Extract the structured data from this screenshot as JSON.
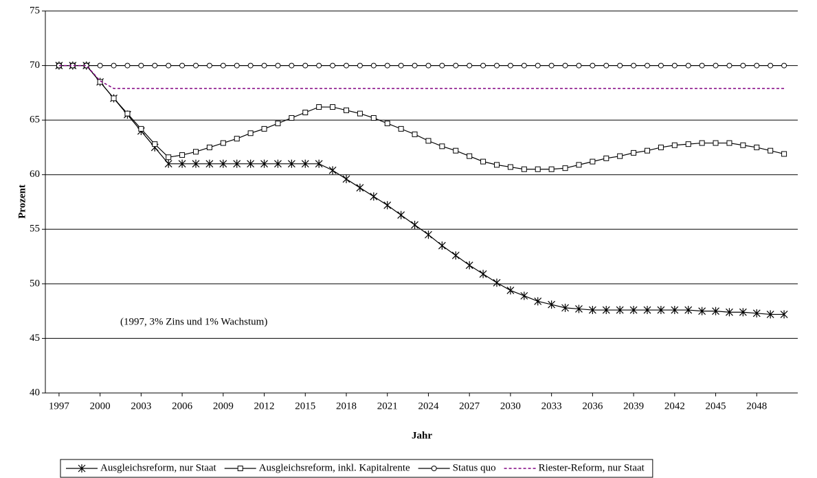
{
  "chart_data": {
    "type": "line",
    "x_label": "Jahr",
    "y_label": "Prozent",
    "annotation": "(1997, 3% Zins und 1% Wachstum)",
    "x": [
      1997,
      1998,
      1999,
      2000,
      2001,
      2002,
      2003,
      2004,
      2005,
      2006,
      2007,
      2008,
      2009,
      2010,
      2011,
      2012,
      2013,
      2014,
      2015,
      2016,
      2017,
      2018,
      2019,
      2020,
      2021,
      2022,
      2023,
      2024,
      2025,
      2026,
      2027,
      2028,
      2029,
      2030,
      2031,
      2032,
      2033,
      2034,
      2035,
      2036,
      2037,
      2038,
      2039,
      2040,
      2041,
      2042,
      2043,
      2044,
      2045,
      2046,
      2047,
      2048,
      2049,
      2050
    ],
    "xlim": [
      1996,
      2051
    ],
    "xticks": [
      1997,
      2000,
      2003,
      2006,
      2009,
      2012,
      2015,
      2018,
      2021,
      2024,
      2027,
      2030,
      2033,
      2036,
      2039,
      2042,
      2045,
      2048
    ],
    "ylim": [
      40,
      75
    ],
    "yticks": [
      40,
      45,
      50,
      55,
      60,
      65,
      70,
      75
    ],
    "grid": true,
    "legend": "bottom",
    "series": [
      {
        "name": "Ausgleichsreform, nur Staat",
        "color": "#000000",
        "marker": "star",
        "dash": "solid",
        "values": [
          70,
          70,
          70,
          68.5,
          67,
          65.5,
          64,
          62.5,
          61,
          61,
          61,
          61,
          61,
          61,
          61,
          61,
          61,
          61,
          61,
          61,
          60.4,
          59.6,
          58.8,
          58,
          57.2,
          56.3,
          55.4,
          54.5,
          53.5,
          52.6,
          51.7,
          50.9,
          50.1,
          49.4,
          48.9,
          48.4,
          48.1,
          47.8,
          47.7,
          47.6,
          47.6,
          47.6,
          47.6,
          47.6,
          47.6,
          47.6,
          47.6,
          47.5,
          47.5,
          47.4,
          47.4,
          47.3,
          47.2,
          47.2
        ]
      },
      {
        "name": "Ausgleichsreform, inkl. Kapitalrente",
        "color": "#000000",
        "marker": "square",
        "dash": "solid",
        "values": [
          70,
          70,
          70,
          68.5,
          67,
          65.6,
          64.2,
          62.8,
          61.6,
          61.8,
          62.1,
          62.5,
          62.9,
          63.3,
          63.8,
          64.2,
          64.7,
          65.2,
          65.7,
          66.2,
          66.2,
          65.9,
          65.6,
          65.2,
          64.7,
          64.2,
          63.7,
          63.1,
          62.6,
          62.2,
          61.7,
          61.2,
          60.9,
          60.7,
          60.5,
          60.5,
          60.5,
          60.6,
          60.9,
          61.2,
          61.5,
          61.7,
          62,
          62.2,
          62.5,
          62.7,
          62.8,
          62.9,
          62.9,
          62.9,
          62.7,
          62.5,
          62.2,
          61.9
        ]
      },
      {
        "name": "Status quo",
        "color": "#000000",
        "marker": "circle",
        "dash": "solid",
        "values": [
          70,
          70,
          70,
          70,
          70,
          70,
          70,
          70,
          70,
          70,
          70,
          70,
          70,
          70,
          70,
          70,
          70,
          70,
          70,
          70,
          70,
          70,
          70,
          70,
          70,
          70,
          70,
          70,
          70,
          70,
          70,
          70,
          70,
          70,
          70,
          70,
          70,
          70,
          70,
          70,
          70,
          70,
          70,
          70,
          70,
          70,
          70,
          70,
          70,
          70,
          70,
          70,
          70,
          70
        ]
      },
      {
        "name": "Riester-Reform, nur Staat",
        "color": "#800080",
        "marker": "none",
        "dash": "dashed",
        "values": [
          70,
          70,
          70,
          68.6,
          67.9,
          67.9,
          67.9,
          67.9,
          67.9,
          67.9,
          67.9,
          67.9,
          67.9,
          67.9,
          67.9,
          67.9,
          67.9,
          67.9,
          67.9,
          67.9,
          67.9,
          67.9,
          67.9,
          67.9,
          67.9,
          67.9,
          67.9,
          67.9,
          67.9,
          67.9,
          67.9,
          67.9,
          67.9,
          67.9,
          67.9,
          67.9,
          67.9,
          67.9,
          67.9,
          67.9,
          67.9,
          67.9,
          67.9,
          67.9,
          67.9,
          67.9,
          67.9,
          67.9,
          67.9,
          67.9,
          67.9,
          67.9,
          67.9,
          67.9
        ]
      }
    ]
  }
}
